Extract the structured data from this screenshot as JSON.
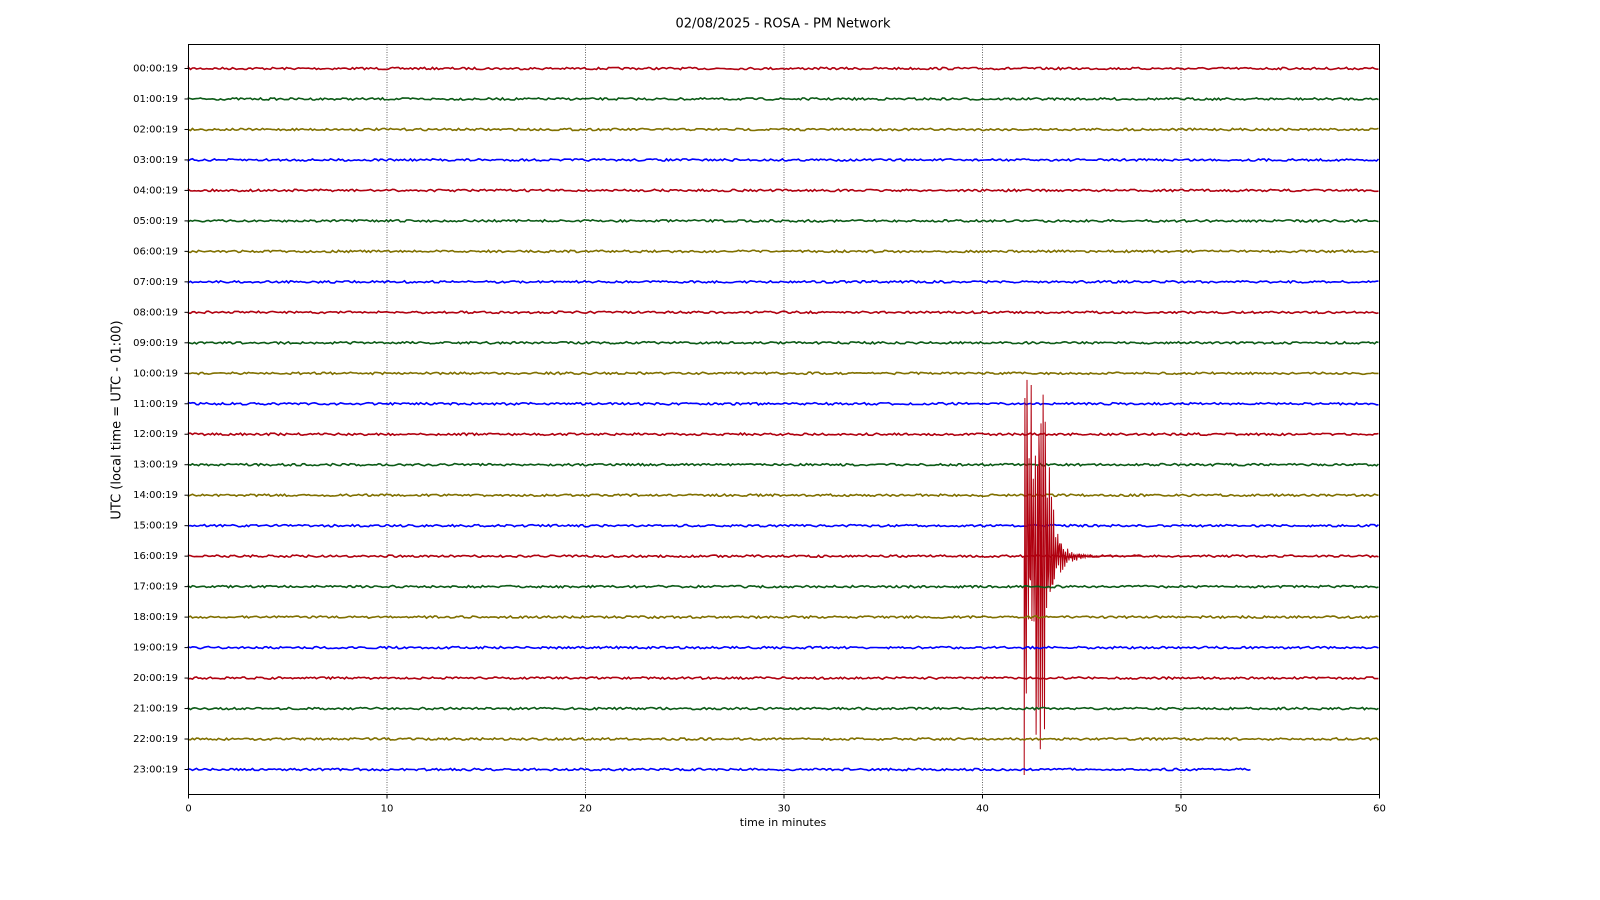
{
  "chart_data": {
    "type": "helicorder",
    "title": "02/08/2025 - ROSA - PM Network",
    "x_label": "time in minutes",
    "y_label": "UTC (local time = UTC - 01:00)",
    "xlim": [
      0,
      60
    ],
    "xticks": [
      0,
      10,
      20,
      30,
      40,
      50,
      60
    ],
    "grid": true,
    "series": [
      {
        "name": "00:00:19",
        "color": "#b0000f",
        "x": [
          0,
          60
        ]
      },
      {
        "name": "01:00:19",
        "color": "#0b5a16",
        "x": [
          0,
          60
        ]
      },
      {
        "name": "02:00:19",
        "color": "#807000",
        "x": [
          0,
          60
        ]
      },
      {
        "name": "03:00:19",
        "color": "#0000ff",
        "x": [
          0,
          60
        ]
      },
      {
        "name": "04:00:19",
        "color": "#b0000f",
        "x": [
          0,
          60
        ]
      },
      {
        "name": "05:00:19",
        "color": "#0b5a16",
        "x": [
          0,
          60
        ]
      },
      {
        "name": "06:00:19",
        "color": "#807000",
        "x": [
          0,
          60
        ]
      },
      {
        "name": "07:00:19",
        "color": "#0000ff",
        "x": [
          0,
          60
        ]
      },
      {
        "name": "08:00:19",
        "color": "#b0000f",
        "x": [
          0,
          60
        ]
      },
      {
        "name": "09:00:19",
        "color": "#0b5a16",
        "x": [
          0,
          60
        ]
      },
      {
        "name": "10:00:19",
        "color": "#807000",
        "x": [
          0,
          60
        ]
      },
      {
        "name": "11:00:19",
        "color": "#0000ff",
        "x": [
          0,
          60
        ]
      },
      {
        "name": "12:00:19",
        "color": "#b0000f",
        "x": [
          0,
          60
        ]
      },
      {
        "name": "13:00:19",
        "color": "#0b5a16",
        "x": [
          0,
          60
        ]
      },
      {
        "name": "14:00:19",
        "color": "#807000",
        "x": [
          0,
          60
        ]
      },
      {
        "name": "15:00:19",
        "color": "#0000ff",
        "x": [
          0,
          60
        ]
      },
      {
        "name": "16:00:19",
        "color": "#b0000f",
        "x": [
          0,
          60
        ],
        "event_x": [
          42.1,
          48
        ]
      },
      {
        "name": "17:00:19",
        "color": "#0b5a16",
        "x": [
          0,
          60
        ]
      },
      {
        "name": "18:00:19",
        "color": "#807000",
        "x": [
          0,
          60
        ]
      },
      {
        "name": "19:00:19",
        "color": "#0000ff",
        "x": [
          0,
          60
        ]
      },
      {
        "name": "20:00:19",
        "color": "#b0000f",
        "x": [
          0,
          60
        ]
      },
      {
        "name": "21:00:19",
        "color": "#0b5a16",
        "x": [
          0,
          60
        ]
      },
      {
        "name": "22:00:19",
        "color": "#807000",
        "x": [
          0,
          60
        ]
      },
      {
        "name": "23:00:19",
        "color": "#0000ff",
        "x": [
          0,
          53.6
        ]
      }
    ]
  }
}
